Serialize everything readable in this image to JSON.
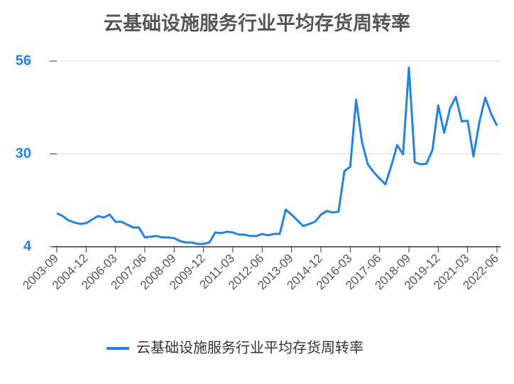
{
  "chart_data": {
    "type": "line",
    "title": "云基础设施服务行业平均存货周转率",
    "categories": [
      "2003-09",
      null,
      null,
      null,
      null,
      "2004-12",
      null,
      null,
      null,
      null,
      "2006-03",
      null,
      null,
      null,
      null,
      "2007-06",
      null,
      null,
      null,
      null,
      "2008-09",
      null,
      null,
      null,
      null,
      "2009-12",
      null,
      null,
      null,
      null,
      "2011-03",
      null,
      null,
      null,
      null,
      "2012-06",
      null,
      null,
      null,
      null,
      "2013-09",
      null,
      null,
      null,
      null,
      "2014-12",
      null,
      null,
      null,
      null,
      "2016-03",
      null,
      null,
      null,
      null,
      "2017-06",
      null,
      null,
      null,
      null,
      "2018-09",
      null,
      null,
      null,
      null,
      "2019-12",
      null,
      null,
      null,
      null,
      "2021-03",
      null,
      null,
      null,
      null,
      "2022-06"
    ],
    "series": [
      {
        "name": "云基础设施服务行业平均存货周转率",
        "color": "#2383e2",
        "values": [
          13.4,
          12.6,
          11.4,
          10.8,
          10.4,
          10.6,
          11.6,
          12.6,
          12.2,
          13,
          11,
          11,
          10.2,
          9.4,
          9.4,
          6.6,
          6.8,
          7,
          6.6,
          6.6,
          6.4,
          5.6,
          5.2,
          5.2,
          4.8,
          4.8,
          5.2,
          8,
          7.8,
          8.2,
          8,
          7.4,
          7.4,
          7,
          7,
          7.6,
          7.2,
          7.6,
          7.6,
          14.4,
          13,
          11.4,
          9.8,
          10.4,
          11,
          13,
          14,
          13.6,
          13.8,
          25.2,
          26.4,
          45.2,
          33.3,
          27.1,
          24.9,
          23.1,
          21.5,
          26.7,
          32.5,
          29.9,
          54.2,
          27.7,
          27.1,
          27.3,
          31.1,
          43.6,
          35.9,
          42.8,
          46,
          39.1,
          39.3,
          29.3,
          38.9,
          45.8,
          41.3,
          37.9
        ]
      }
    ],
    "ylim": [
      4,
      56
    ],
    "yticks": [
      4,
      30,
      56
    ],
    "grid": true
  }
}
